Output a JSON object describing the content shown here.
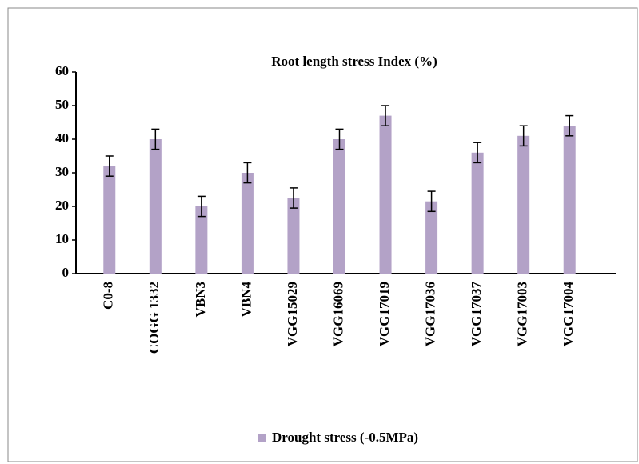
{
  "chart_data": {
    "type": "bar",
    "title": "Root length stress Index (%)",
    "categories": [
      "C0-8",
      "COGG 1332",
      "VBN3",
      "VBN4",
      "VGG15029",
      "VGG16069",
      "VGG17019",
      "VGG17036",
      "VGG17037",
      "VGG17003",
      "VGG17004"
    ],
    "series": [
      {
        "name": "Drought stress (-0.5MPa)",
        "color": "#b3a2c7",
        "values": [
          32,
          40,
          20,
          30,
          22.5,
          40,
          47,
          21.5,
          36,
          41,
          44
        ],
        "errors": [
          3,
          3,
          3,
          3,
          3,
          3,
          3,
          3,
          3,
          3,
          3
        ]
      }
    ],
    "ylim": [
      0,
      60
    ],
    "yticks": [
      0,
      10,
      20,
      30,
      40,
      50,
      60
    ],
    "grid": false,
    "legend": "bottom"
  }
}
